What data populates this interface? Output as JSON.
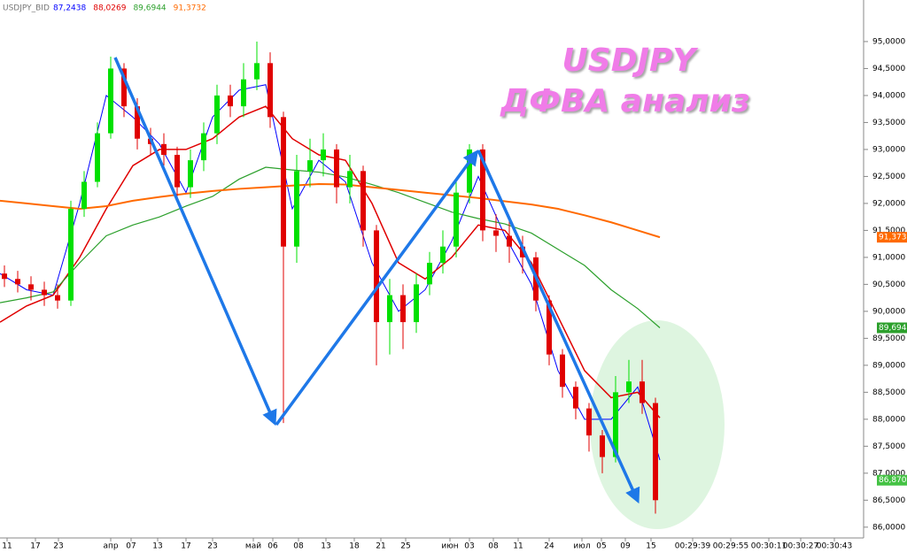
{
  "chart_data": {
    "type": "candlestick",
    "symbol": "USDJPY_BID",
    "title": "USDJPY",
    "subtitle": "ДФВА анализ",
    "xlim": [
      0,
      975
    ],
    "ylim": [
      85.8,
      95.77
    ],
    "yticks": [
      {
        "value": 86.0,
        "label": "86,0000"
      },
      {
        "value": 86.5,
        "label": "86,5000"
      },
      {
        "value": 87.0,
        "label": "87,0000"
      },
      {
        "value": 87.5,
        "label": "87,5000"
      },
      {
        "value": 88.0,
        "label": "88,0000"
      },
      {
        "value": 88.5,
        "label": "88,5000"
      },
      {
        "value": 89.0,
        "label": "89,0000"
      },
      {
        "value": 89.5,
        "label": "89,5000"
      },
      {
        "value": 90.0,
        "label": "90,0000"
      },
      {
        "value": 90.5,
        "label": "90,5000"
      },
      {
        "value": 91.0,
        "label": "91,0000"
      },
      {
        "value": 91.5,
        "label": "91,5000"
      },
      {
        "value": 92.0,
        "label": "92,0000"
      },
      {
        "value": 92.5,
        "label": "92,5000"
      },
      {
        "value": 93.0,
        "label": "93,0000"
      },
      {
        "value": 93.5,
        "label": "93,5000"
      },
      {
        "value": 94.0,
        "label": "94,0000"
      },
      {
        "value": 94.5,
        "label": "94,5000"
      },
      {
        "value": 95.0,
        "label": "95,0000"
      }
    ],
    "xticks": [
      {
        "value": 8,
        "label": "11"
      },
      {
        "value": 40,
        "label": "17"
      },
      {
        "value": 66,
        "label": "23"
      },
      {
        "value": 125,
        "label": "апр"
      },
      {
        "value": 148,
        "label": "07"
      },
      {
        "value": 178,
        "label": "13"
      },
      {
        "value": 210,
        "label": "17"
      },
      {
        "value": 240,
        "label": "23"
      },
      {
        "value": 286,
        "label": "май"
      },
      {
        "value": 308,
        "label": "06"
      },
      {
        "value": 337,
        "label": "08"
      },
      {
        "value": 368,
        "label": "13"
      },
      {
        "value": 400,
        "label": "18"
      },
      {
        "value": 430,
        "label": "21"
      },
      {
        "value": 458,
        "label": "25"
      },
      {
        "value": 508,
        "label": "июн"
      },
      {
        "value": 530,
        "label": "03"
      },
      {
        "value": 557,
        "label": "08"
      },
      {
        "value": 585,
        "label": "11"
      },
      {
        "value": 620,
        "label": "24"
      },
      {
        "value": 657,
        "label": "июл"
      },
      {
        "value": 679,
        "label": "05"
      },
      {
        "value": 706,
        "label": "09"
      },
      {
        "value": 735,
        "label": "15"
      },
      {
        "value": 782,
        "label": "00:29:39"
      },
      {
        "value": 825,
        "label": "00:29:55"
      },
      {
        "value": 868,
        "label": "00:30:11"
      },
      {
        "value": 904,
        "label": "00:30:27"
      },
      {
        "value": 942,
        "label": "00:30:43"
      }
    ],
    "up_color": "#00e000",
    "down_color": "#e00000",
    "candles": {
      "x": [
        5,
        20,
        35,
        50,
        65,
        80,
        95,
        110,
        125,
        140,
        155,
        170,
        185,
        200,
        215,
        230,
        245,
        260,
        275,
        290,
        305,
        320,
        335,
        350,
        365,
        380,
        395,
        410,
        425,
        440,
        455,
        470,
        485,
        500,
        515,
        530,
        545,
        560,
        575,
        590,
        605,
        620,
        635,
        650,
        665,
        680,
        695,
        710,
        725,
        740
      ],
      "open": [
        90.7,
        90.6,
        90.5,
        90.4,
        90.3,
        90.2,
        91.9,
        92.4,
        93.3,
        94.5,
        93.8,
        93.2,
        93.1,
        92.9,
        92.3,
        92.8,
        93.3,
        94.0,
        93.8,
        94.3,
        94.6,
        93.6,
        91.2,
        92.6,
        92.8,
        93.0,
        92.3,
        92.6,
        91.5,
        89.8,
        90.3,
        89.8,
        90.5,
        90.9,
        91.2,
        92.2,
        93.0,
        91.5,
        91.4,
        91.2,
        91.0,
        90.2,
        89.2,
        88.6,
        88.2,
        87.7,
        87.3,
        88.5,
        88.7,
        88.3
      ],
      "high": [
        90.85,
        90.75,
        90.65,
        90.55,
        90.5,
        92.05,
        92.6,
        93.5,
        94.72,
        94.6,
        93.95,
        93.4,
        93.3,
        93.05,
        93.0,
        93.5,
        94.2,
        94.2,
        94.6,
        95.0,
        94.8,
        93.7,
        92.9,
        93.2,
        93.3,
        93.1,
        92.9,
        92.7,
        91.6,
        90.6,
        90.5,
        90.7,
        91.1,
        91.5,
        92.4,
        93.1,
        93.1,
        91.8,
        91.7,
        91.4,
        91.1,
        90.3,
        89.3,
        88.7,
        88.3,
        87.8,
        88.8,
        89.1,
        89.1,
        88.4
      ],
      "low": [
        90.45,
        90.35,
        90.2,
        90.1,
        90.05,
        90.1,
        91.75,
        92.3,
        93.2,
        93.6,
        93.0,
        92.9,
        92.7,
        92.1,
        92.1,
        92.6,
        93.1,
        93.6,
        93.6,
        94.1,
        93.4,
        87.93,
        90.9,
        92.3,
        92.5,
        92.0,
        92.0,
        91.2,
        89.0,
        89.2,
        89.3,
        89.6,
        90.3,
        90.7,
        91.0,
        92.0,
        91.3,
        91.1,
        90.9,
        90.7,
        90.0,
        89.0,
        88.4,
        88.0,
        87.4,
        87.0,
        87.2,
        88.3,
        88.1,
        86.25
      ],
      "close": [
        90.6,
        90.5,
        90.4,
        90.3,
        90.2,
        91.9,
        92.4,
        93.3,
        94.5,
        93.8,
        93.2,
        93.1,
        92.9,
        92.3,
        92.8,
        93.3,
        94.0,
        93.8,
        94.3,
        94.6,
        93.6,
        91.2,
        92.6,
        92.8,
        93.0,
        92.3,
        92.6,
        91.5,
        89.8,
        90.3,
        89.8,
        90.5,
        90.9,
        91.2,
        92.2,
        93.0,
        91.5,
        91.4,
        91.2,
        91.0,
        90.2,
        89.2,
        88.6,
        88.2,
        87.7,
        87.3,
        88.5,
        88.7,
        88.3,
        86.5
      ]
    },
    "ma_x": [
      0,
      30,
      60,
      90,
      120,
      150,
      180,
      210,
      240,
      270,
      300,
      330,
      360,
      390,
      420,
      450,
      480,
      510,
      540,
      570,
      600,
      630,
      660,
      690,
      720,
      745
    ],
    "series": [
      {
        "label": "87,2438",
        "color": "#0000ff",
        "width": 1,
        "values": [
          90.7,
          90.4,
          90.3,
          92.0,
          94.0,
          93.6,
          93.1,
          92.2,
          93.6,
          94.1,
          94.2,
          91.9,
          92.8,
          92.4,
          90.9,
          90.0,
          90.4,
          91.3,
          92.5,
          91.4,
          90.5,
          88.9,
          88.0,
          88.0,
          88.6,
          87.2438
        ]
      },
      {
        "label": "88,0269",
        "color": "#e00000",
        "width": 1.5,
        "values": [
          89.8,
          90.1,
          90.3,
          91.0,
          91.9,
          92.7,
          93.0,
          93.0,
          93.2,
          93.6,
          93.8,
          93.2,
          92.9,
          92.8,
          92.0,
          90.9,
          90.6,
          91.0,
          91.6,
          91.5,
          90.9,
          89.9,
          88.9,
          88.4,
          88.5,
          88.0269
        ]
      },
      {
        "label": "89,6944",
        "color": "#2ca02c",
        "width": 1.2,
        "values": [
          90.16,
          90.25,
          90.36,
          90.9,
          91.4,
          91.6,
          91.75,
          91.95,
          92.13,
          92.45,
          92.67,
          92.62,
          92.58,
          92.49,
          92.35,
          92.2,
          92.02,
          91.84,
          91.72,
          91.62,
          91.45,
          91.15,
          90.85,
          90.4,
          90.05,
          89.6944
        ]
      },
      {
        "label": "91,3732",
        "color": "#ff6a00",
        "width": 2,
        "values": [
          92.05,
          92.0,
          91.95,
          91.9,
          91.95,
          92.05,
          92.12,
          92.18,
          92.23,
          92.27,
          92.3,
          92.33,
          92.36,
          92.35,
          92.3,
          92.25,
          92.2,
          92.15,
          92.1,
          92.04,
          91.98,
          91.9,
          91.78,
          91.65,
          91.5,
          91.3732
        ]
      }
    ],
    "last_price": {
      "value": 86.87,
      "label": "86,8700"
    }
  }
}
